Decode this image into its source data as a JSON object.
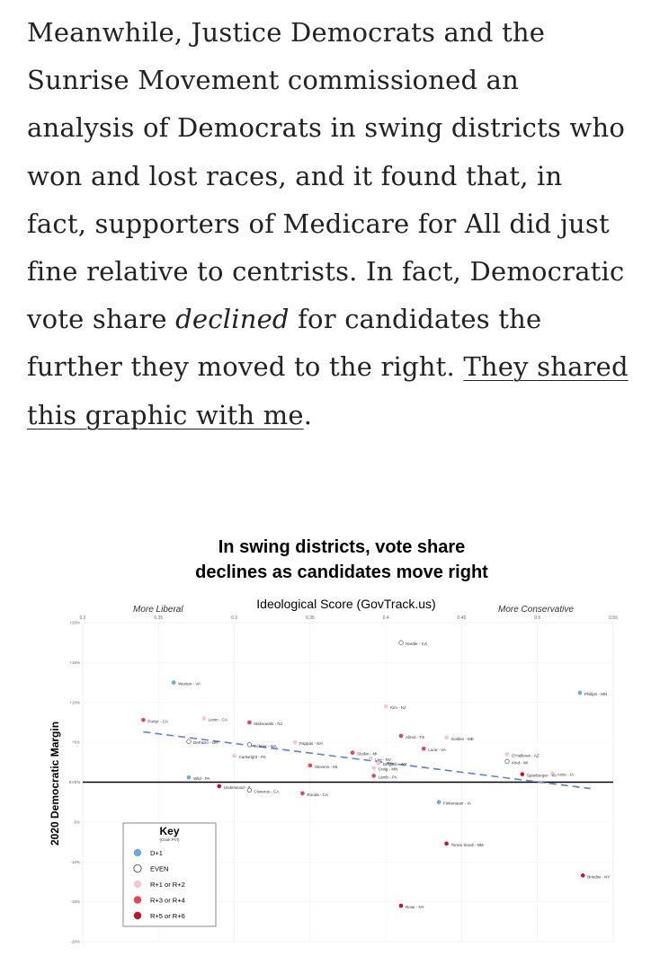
{
  "article": {
    "text_1": "Meanwhile, Justice Democrats and the Sunrise Movement commissioned an analysis of Democrats in swing districts who won and lost races, and it found that, in fact, supporters of Medicare for All did just fine relative to centrists. In fact, Democratic vote share ",
    "emphasis": "declined",
    "text_2": " for candidates the further they moved to the right. ",
    "link_text": "They shared this graphic with me",
    "text_3": "."
  },
  "chart_data": {
    "type": "scatter",
    "title_line1": "In swing districts, vote share",
    "title_line2": "declines as candidates move right",
    "xlabel": "Ideological Score (GovTrack.us)",
    "ylabel": "2020 Democratic Margin",
    "x_left_note": "More Liberal",
    "x_right_note": "More Conservative",
    "xlim": [
      0.2,
      0.55
    ],
    "ylim": [
      -20,
      20
    ],
    "x_ticks": [
      "0.2",
      "0.25",
      "0.3",
      "0.35",
      "0.4",
      "0.45",
      "0.5",
      "0.55"
    ],
    "y_ticks": [
      {
        "value": 20,
        "label": "+20%"
      },
      {
        "value": 15,
        "label": "+15%"
      },
      {
        "value": 10,
        "label": "+10%"
      },
      {
        "value": 5,
        "label": "+5%"
      },
      {
        "value": 0,
        "label": "EVEN"
      },
      {
        "value": -5,
        "label": "-5%"
      },
      {
        "value": -10,
        "label": "-10%"
      },
      {
        "value": -15,
        "label": "-15%"
      },
      {
        "value": -20,
        "label": "-20%"
      }
    ],
    "trendline": {
      "x": [
        0.24,
        0.535
      ],
      "y": [
        6.3,
        -0.8
      ]
    },
    "legend": {
      "title": "Key",
      "subtitle": "(Cook PVI)",
      "items": [
        {
          "label": "D+1",
          "category": "D+1"
        },
        {
          "label": "EVEN",
          "category": "EVEN"
        },
        {
          "label": "R+1 or R+2",
          "category": "R+1 or R+2"
        },
        {
          "label": "R+3 or R+4",
          "category": "R+3 or R+4"
        },
        {
          "label": "R+5 or R+6",
          "category": "R+5 or R+6"
        }
      ]
    },
    "category_colors": {
      "D+1": "#6fa8dc",
      "EVEN": "#ffffff",
      "R+1 or R+2": "#f4c7cf",
      "R+3 or R+4": "#e0455b",
      "R+5 or R+6": "#c0142a"
    },
    "points": [
      {
        "label": "Harder - CA",
        "x": 0.41,
        "y": 17.5,
        "category": "EVEN"
      },
      {
        "label": "Wexton - VA",
        "x": 0.26,
        "y": 12.5,
        "category": "D+1"
      },
      {
        "label": "Phillips - MN",
        "x": 0.528,
        "y": 11.2,
        "category": "D+1"
      },
      {
        "label": "Kim - NJ",
        "x": 0.4,
        "y": 9.5,
        "category": "R+1 or R+2"
      },
      {
        "label": "Porter - CA",
        "x": 0.24,
        "y": 7.8,
        "category": "R+3 or R+4"
      },
      {
        "label": "Levin - CA",
        "x": 0.28,
        "y": 8.0,
        "category": "R+1 or R+2"
      },
      {
        "label": "Malinowski - NJ",
        "x": 0.31,
        "y": 7.5,
        "category": "R+3 or R+4"
      },
      {
        "label": "Allred - TX",
        "x": 0.41,
        "y": 5.8,
        "category": "R+3 or R+4"
      },
      {
        "label": "Golden - ME",
        "x": 0.44,
        "y": 5.6,
        "category": "R+1 or R+2"
      },
      {
        "label": "DeFazio - OR",
        "x": 0.27,
        "y": 5.1,
        "category": "EVEN"
      },
      {
        "label": "Schrier - WA",
        "x": 0.31,
        "y": 4.7,
        "category": "EVEN"
      },
      {
        "label": "Pappas - NH",
        "x": 0.34,
        "y": 5.0,
        "category": "R+1 or R+2"
      },
      {
        "label": "Luria - VA",
        "x": 0.425,
        "y": 4.2,
        "category": "R+3 or R+4"
      },
      {
        "label": "Slotkin - MI",
        "x": 0.378,
        "y": 3.7,
        "category": "R+3 or R+4"
      },
      {
        "label": "O'Halleran - AZ",
        "x": 0.48,
        "y": 3.5,
        "category": "R+1 or R+2"
      },
      {
        "label": "Cartwright - PA",
        "x": 0.3,
        "y": 3.3,
        "category": "R+1 or R+2"
      },
      {
        "label": "Lee - NV",
        "x": 0.39,
        "y": 3.0,
        "category": "R+1 or R+2"
      },
      {
        "label": "Kind - WI",
        "x": 0.48,
        "y": 2.6,
        "category": "EVEN"
      },
      {
        "label": "Delgado - NY",
        "x": 0.395,
        "y": 2.4,
        "category": "R+1 or R+2"
      },
      {
        "label": "Stevens - MI",
        "x": 0.35,
        "y": 2.1,
        "category": "R+3 or R+4"
      },
      {
        "label": "Craig - MN",
        "x": 0.392,
        "y": 1.8,
        "category": "R+1 or R+2"
      },
      {
        "label": "Axne - IA",
        "x": 0.51,
        "y": 1.1,
        "category": "R+1 or R+2"
      },
      {
        "label": "Lamb - PA",
        "x": 0.392,
        "y": 0.8,
        "category": "R+3 or R+4"
      },
      {
        "label": "Spanberger - VA",
        "x": 0.49,
        "y": 1.0,
        "category": "R+5 or R+6"
      },
      {
        "label": "Wild - PA",
        "x": 0.27,
        "y": 0.6,
        "category": "D+1"
      },
      {
        "label": "Underwood - IL",
        "x": 0.29,
        "y": -0.5,
        "category": "R+5 or R+6"
      },
      {
        "label": "Cisneros - CA",
        "x": 0.31,
        "y": -1.0,
        "category": "EVEN"
      },
      {
        "label": "Rouda - CA",
        "x": 0.345,
        "y": -1.4,
        "category": "R+3 or R+4"
      },
      {
        "label": "Finkenauer - IA",
        "x": 0.435,
        "y": -2.5,
        "category": "D+1"
      },
      {
        "label": "Torres Small - NM",
        "x": 0.44,
        "y": -7.7,
        "category": "R+5 or R+6"
      },
      {
        "label": "Brindisi - NY",
        "x": 0.53,
        "y": -11.7,
        "category": "R+5 or R+6"
      },
      {
        "label": "Rose - NY",
        "x": 0.41,
        "y": -15.5,
        "category": "R+5 or R+6"
      }
    ]
  }
}
